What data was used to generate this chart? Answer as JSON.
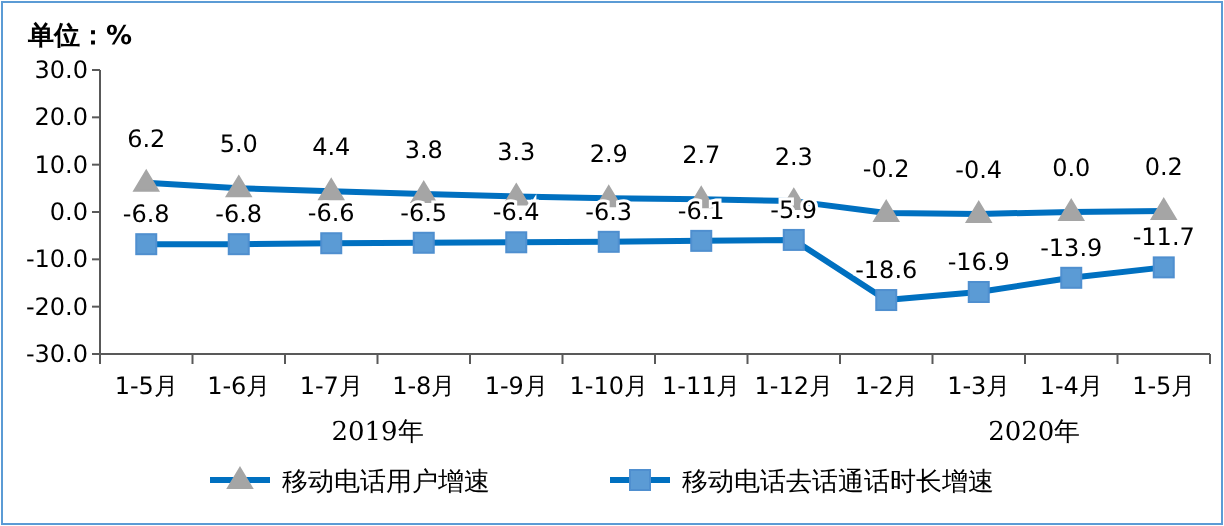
{
  "chart_data": {
    "type": "line",
    "title": "单位：%",
    "categories": [
      "1-5月",
      "1-6月",
      "1-7月",
      "1-8月",
      "1-9月",
      "1-10月",
      "1-11月",
      "1-12月",
      "1-2月",
      "1-3月",
      "1-4月",
      "1-5月"
    ],
    "series": [
      {
        "name": "移动电话用户增速",
        "color": "#0070c0",
        "marker": "triangle",
        "values": [
          6.2,
          5.0,
          4.4,
          3.8,
          3.3,
          2.9,
          2.7,
          2.3,
          -0.2,
          -0.4,
          0.0,
          0.2
        ],
        "value_labels": [
          "6.2",
          "5.0",
          "4.4",
          "3.8",
          "3.3",
          "2.9",
          "2.7",
          "2.3",
          "-0.2",
          "-0.4",
          "0.0",
          "0.2"
        ]
      },
      {
        "name": "移动电话去话通话时长增速",
        "color": "#0070c0",
        "marker": "square",
        "values": [
          -6.8,
          -6.8,
          -6.6,
          -6.5,
          -6.4,
          -6.3,
          -6.1,
          -5.9,
          -18.6,
          -16.9,
          -13.9,
          -11.7
        ],
        "value_labels": [
          "-6.8",
          "-6.8",
          "-6.6",
          "-6.5",
          "-6.4",
          "-6.3",
          "-6.1",
          "-5.9",
          "-18.6",
          "-16.9",
          "-13.9",
          "-11.7"
        ]
      }
    ],
    "ylim": [
      -30,
      30
    ],
    "yticks": [
      {
        "value": -30,
        "label": "-30.0"
      },
      {
        "value": -20,
        "label": "-20.0"
      },
      {
        "value": -10,
        "label": "-10.0"
      },
      {
        "value": 0,
        "label": "0.0"
      },
      {
        "value": 10,
        "label": "10.0"
      },
      {
        "value": 20,
        "label": "20.0"
      },
      {
        "value": 30,
        "label": "30.0"
      }
    ],
    "annotations": [
      "2019年",
      "2020年"
    ],
    "grid": false,
    "legend": "bottom",
    "line_style": "solid"
  }
}
